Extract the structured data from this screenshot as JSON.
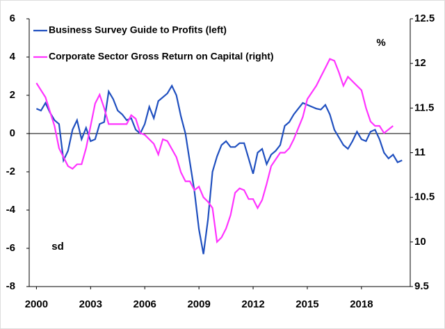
{
  "chart_data": {
    "type": "line",
    "xlim": [
      1999.6,
      2020.7
    ],
    "xticks": [
      2000,
      2003,
      2006,
      2009,
      2012,
      2015,
      2018
    ],
    "ylim": [
      -8,
      6
    ],
    "yticks": [
      -8,
      -6,
      -4,
      -2,
      0,
      2,
      4,
      6
    ],
    "y2lim": [
      9.5,
      12.5
    ],
    "y2ticks": [
      9.5,
      10,
      10.5,
      11,
      11.5,
      12,
      12.5
    ],
    "annotations": [
      "%",
      "sd"
    ],
    "legend": "top-left",
    "series": [
      {
        "name": "Business Survey Guide to Profits (left)",
        "color": "#1f4fbf",
        "axis": "y",
        "x": [
          2000,
          2000.25,
          2000.5,
          2000.75,
          2001,
          2001.25,
          2001.5,
          2001.75,
          2002,
          2002.25,
          2002.5,
          2002.75,
          2003,
          2003.25,
          2003.5,
          2003.75,
          2004,
          2004.25,
          2004.5,
          2004.75,
          2005,
          2005.25,
          2005.5,
          2005.75,
          2006,
          2006.25,
          2006.5,
          2006.75,
          2007,
          2007.25,
          2007.5,
          2007.75,
          2008,
          2008.25,
          2008.5,
          2008.75,
          2009,
          2009.25,
          2009.5,
          2009.75,
          2010,
          2010.25,
          2010.5,
          2010.75,
          2011,
          2011.25,
          2011.5,
          2011.75,
          2012,
          2012.25,
          2012.5,
          2012.75,
          2013,
          2013.25,
          2013.5,
          2013.75,
          2014,
          2014.25,
          2014.5,
          2014.75,
          2015,
          2015.25,
          2015.5,
          2015.75,
          2016,
          2016.25,
          2016.5,
          2016.75,
          2017,
          2017.25,
          2017.5,
          2017.75,
          2018,
          2018.25,
          2018.5,
          2018.75,
          2019,
          2019.25,
          2019.5,
          2019.75,
          2020,
          2020.25
        ],
        "values": [
          1.3,
          1.2,
          1.6,
          1.1,
          0.7,
          0.5,
          -1.4,
          -0.9,
          0.2,
          0.7,
          -0.3,
          0.3,
          -0.4,
          -0.3,
          0.5,
          0.6,
          2.2,
          1.8,
          1.2,
          1.0,
          0.7,
          0.8,
          0.2,
          0.0,
          0.5,
          1.4,
          0.8,
          1.7,
          1.9,
          2.1,
          2.5,
          2.0,
          0.9,
          0.0,
          -1.5,
          -3.0,
          -5.0,
          -6.3,
          -4.5,
          -2.0,
          -1.2,
          -0.6,
          -0.4,
          -0.7,
          -0.7,
          -0.5,
          -0.5,
          -1.3,
          -2.1,
          -1.0,
          -0.8,
          -1.6,
          -1.1,
          -0.9,
          -0.6,
          0.4,
          0.6,
          1.0,
          1.3,
          1.6,
          1.5,
          1.4,
          1.3,
          1.25,
          1.5,
          1.0,
          0.2,
          -0.2,
          -0.6,
          -0.8,
          -0.4,
          0.1,
          -0.3,
          -0.4,
          0.1,
          0.2,
          -0.3,
          -1.0,
          -1.3,
          -1.1,
          -1.5,
          -1.4
        ]
      },
      {
        "name": "Corporate Sector Gross Return on Capital (right)",
        "color": "#ff33ff",
        "axis": "y2",
        "x": [
          2000,
          2000.5,
          2001,
          2001.25,
          2001.5,
          2001.75,
          2002,
          2002.25,
          2002.5,
          2002.75,
          2003,
          2003.25,
          2003.5,
          2003.75,
          2004,
          2004.5,
          2005,
          2005.25,
          2005.5,
          2005.75,
          2006,
          2006.5,
          2006.75,
          2007,
          2007.25,
          2007.75,
          2008,
          2008.25,
          2008.5,
          2008.75,
          2009,
          2009.25,
          2009.5,
          2009.75,
          2010,
          2010.25,
          2010.5,
          2010.75,
          2011,
          2011.25,
          2011.5,
          2011.75,
          2012,
          2012.25,
          2012.5,
          2012.75,
          2013,
          2013.5,
          2013.75,
          2014,
          2014.25,
          2014.75,
          2015,
          2015.5,
          2015.75,
          2016,
          2016.25,
          2016.5,
          2016.75,
          2017,
          2017.25,
          2017.5,
          2017.75,
          2018,
          2018.25,
          2018.5,
          2018.75,
          2019,
          2019.25,
          2019.75
        ],
        "values": [
          11.78,
          11.62,
          11.3,
          11.05,
          10.95,
          10.85,
          10.82,
          10.87,
          10.87,
          11.05,
          11.3,
          11.55,
          11.65,
          11.5,
          11.32,
          11.32,
          11.32,
          11.42,
          11.38,
          11.22,
          11.2,
          11.1,
          10.98,
          11.15,
          11.13,
          10.95,
          10.78,
          10.68,
          10.68,
          10.58,
          10.62,
          10.5,
          10.45,
          10.38,
          10.0,
          10.05,
          10.15,
          10.3,
          10.55,
          10.6,
          10.58,
          10.48,
          10.48,
          10.38,
          10.47,
          10.65,
          10.85,
          11.0,
          11.0,
          11.05,
          11.15,
          11.4,
          11.6,
          11.75,
          11.85,
          11.95,
          12.05,
          12.03,
          11.9,
          11.75,
          11.85,
          11.8,
          11.75,
          11.7,
          11.5,
          11.35,
          11.3,
          11.3,
          11.22,
          11.3
        ]
      }
    ]
  }
}
